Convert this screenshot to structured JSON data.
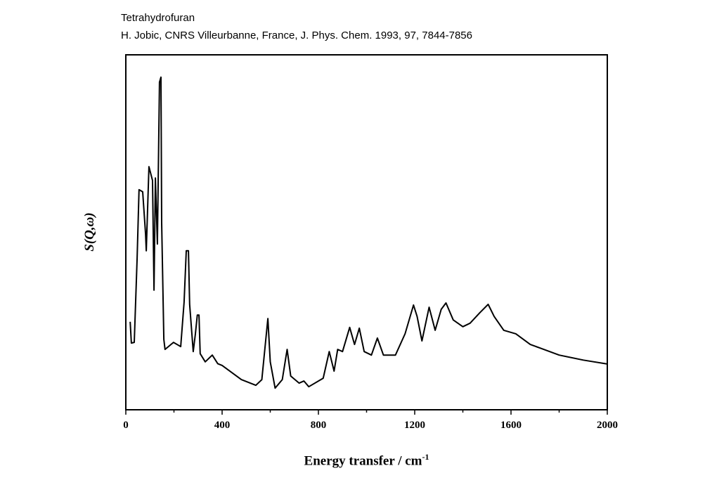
{
  "chart_data": {
    "type": "line",
    "title": "Tetrahydrofuran",
    "subtitle": "H. Jobic, CNRS Villeurbanne, France, J. Phys. Chem. 1993, 97, 7844-7856",
    "xlabel": "Energy transfer / cm",
    "xlabel_sup": "-1",
    "ylabel": "S(Q,ω)",
    "xlim": [
      0,
      2000
    ],
    "ylim": [
      0,
      100
    ],
    "xticks": [
      0,
      400,
      800,
      1200,
      1600,
      2000
    ],
    "xtick_labels": [
      "0",
      "400",
      "800",
      "1200",
      "1600",
      "2000"
    ],
    "minor_xticks": [
      200,
      600,
      1000,
      1400,
      1800
    ],
    "grid": false,
    "series": [
      {
        "name": "Tetrahydrofuran",
        "x": [
          18,
          23,
          35,
          47,
          55,
          70,
          82,
          85,
          96,
          111,
          117,
          123,
          131,
          140,
          146,
          149,
          158,
          163,
          198,
          228,
          242,
          251,
          260,
          265,
          280,
          289,
          297,
          304,
          309,
          330,
          359,
          382,
          400,
          480,
          540,
          565,
          590,
          600,
          620,
          650,
          670,
          685,
          720,
          740,
          760,
          820,
          845,
          865,
          880,
          900,
          930,
          950,
          970,
          990,
          1020,
          1045,
          1070,
          1120,
          1160,
          1195,
          1210,
          1230,
          1260,
          1285,
          1310,
          1330,
          1360,
          1400,
          1430,
          1470,
          1505,
          1530,
          1570,
          1620,
          1680,
          1720,
          1800,
          1900,
          2000
        ],
        "y": [
          24.8,
          18.8,
          19,
          42.8,
          62,
          61.4,
          49.5,
          44.8,
          68.5,
          64.6,
          33.7,
          65.3,
          46.7,
          92.3,
          93.7,
          52.7,
          19.8,
          17,
          19,
          17.8,
          30.3,
          44.8,
          44.8,
          29.7,
          16.4,
          21.4,
          26.7,
          26.7,
          15.8,
          13.5,
          15.4,
          13,
          12.5,
          8.5,
          6.9,
          8.5,
          25.7,
          13.5,
          6.1,
          8.5,
          17,
          9.5,
          7.5,
          8.1,
          6.5,
          8.9,
          16.4,
          10.9,
          17,
          16.4,
          23.2,
          18.4,
          23,
          16.4,
          15.4,
          20.2,
          15.4,
          15.4,
          21.4,
          29.5,
          26.3,
          19.4,
          28.9,
          22.4,
          28.3,
          30.1,
          25.3,
          23.4,
          24.4,
          27.3,
          29.7,
          26.3,
          22.4,
          21.4,
          18.4,
          17.4,
          15.4,
          14,
          12.9
        ]
      }
    ]
  }
}
